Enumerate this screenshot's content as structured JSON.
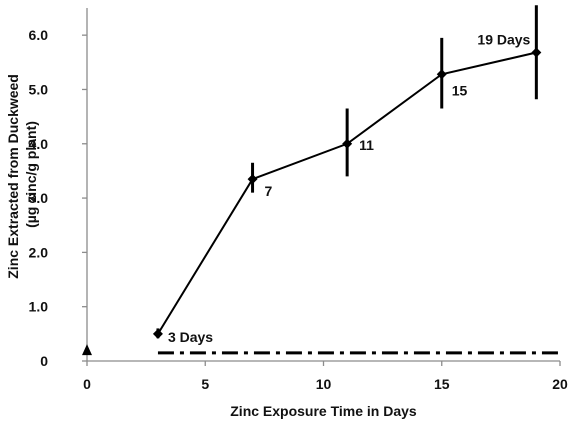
{
  "chart_data": {
    "type": "line",
    "xlabel": "Zinc Exposure Time in Days",
    "ylabel": [
      "Zinc Extracted from Duckweed",
      "(µg zinc/g plant)"
    ],
    "xlim": [
      0,
      20
    ],
    "ylim": [
      0,
      6.5
    ],
    "x_ticks": [
      {
        "value": 0,
        "label": "0"
      },
      {
        "value": 5,
        "label": "5"
      },
      {
        "value": 10,
        "label": "10"
      },
      {
        "value": 15,
        "label": "15"
      },
      {
        "value": 20,
        "label": "20"
      }
    ],
    "y_ticks": [
      {
        "value": 0,
        "label": "0"
      },
      {
        "value": 1,
        "label": "1.0"
      },
      {
        "value": 2,
        "label": "2.0"
      },
      {
        "value": 3,
        "label": "3.0"
      },
      {
        "value": 4,
        "label": "4.0"
      },
      {
        "value": 5,
        "label": "5.0"
      },
      {
        "value": 6,
        "label": "6.0"
      }
    ],
    "grid": false,
    "series": [
      {
        "points": [
          {
            "x": 3,
            "y": 0.5,
            "err_low": 0.42,
            "err_high": 0.6,
            "label": "3 Days"
          },
          {
            "x": 7,
            "y": 3.35,
            "err_low": 3.1,
            "err_high": 3.65,
            "label": "7"
          },
          {
            "x": 11,
            "y": 4.0,
            "err_low": 3.4,
            "err_high": 4.65,
            "label": "11"
          },
          {
            "x": 15,
            "y": 5.28,
            "err_low": 4.65,
            "err_high": 5.95,
            "label": "15"
          },
          {
            "x": 19,
            "y": 5.68,
            "err_low": 4.82,
            "err_high": 6.55,
            "label": "19 Days"
          }
        ]
      }
    ],
    "baseline": {
      "y": 0.15,
      "x_start": 3,
      "x_end": 20,
      "style": "dash-dot"
    },
    "control_point": {
      "x": 0,
      "y": 0.2,
      "marker": "triangle"
    }
  }
}
